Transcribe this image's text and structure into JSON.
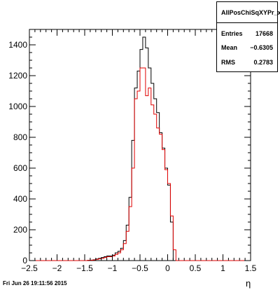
{
  "chart_data": {
    "type": "histogram",
    "xlabel": "η",
    "ylabel": "",
    "xlim": [
      -2.5,
      1.5
    ],
    "ylim": [
      0,
      1500
    ],
    "xticks": [
      -2.5,
      -2,
      -1.5,
      -1,
      -0.5,
      0,
      0.5,
      1,
      1.5
    ],
    "yticks": [
      0,
      200,
      400,
      600,
      800,
      1000,
      1200,
      1400
    ],
    "bin_width": 0.05,
    "bin_start": -2.5,
    "grid": false,
    "series": [
      {
        "color": "#000000",
        "values": [
          0,
          0,
          0,
          0,
          0,
          0,
          0,
          0,
          0,
          0,
          0,
          0,
          0,
          0,
          0,
          0,
          0,
          0,
          0,
          0,
          0,
          2,
          3,
          5,
          10,
          15,
          20,
          25,
          30,
          30,
          35,
          50,
          60,
          80,
          130,
          230,
          410,
          780,
          1120,
          1230,
          1370,
          1450,
          1380,
          1250,
          1150,
          1050,
          960,
          830,
          730,
          600,
          490,
          250,
          0,
          0,
          0,
          0,
          0,
          0,
          0,
          0,
          0,
          0,
          0,
          0,
          0,
          0,
          0,
          0,
          0,
          0,
          0,
          0,
          0,
          0,
          0,
          0,
          0,
          0,
          0,
          0
        ]
      },
      {
        "color": "#e00000",
        "values": [
          0,
          0,
          0,
          0,
          0,
          0,
          0,
          0,
          0,
          0,
          0,
          0,
          0,
          0,
          0,
          0,
          0,
          0,
          0,
          0,
          0,
          1,
          2,
          4,
          8,
          12,
          15,
          20,
          25,
          25,
          30,
          40,
          50,
          70,
          110,
          190,
          350,
          600,
          1050,
          1100,
          1250,
          1250,
          1070,
          1120,
          1010,
          950,
          860,
          820,
          720,
          590,
          500,
          290,
          70,
          0,
          0,
          0,
          0,
          0,
          0,
          0,
          0,
          0,
          0,
          0,
          0,
          0,
          0,
          0,
          0,
          0,
          0,
          0,
          0,
          0,
          0,
          0,
          0,
          0,
          0,
          0
        ]
      }
    ]
  },
  "stats": {
    "name": "AllPosChiSqXYPr_x",
    "entries_label": "Entries",
    "entries_value": "17668",
    "mean_label": "Mean",
    "mean_value": "−0.6305",
    "rms_label": "RMS",
    "rms_value": "0.2783"
  },
  "footer": "Fri Jun 26 19:11:56 2015"
}
